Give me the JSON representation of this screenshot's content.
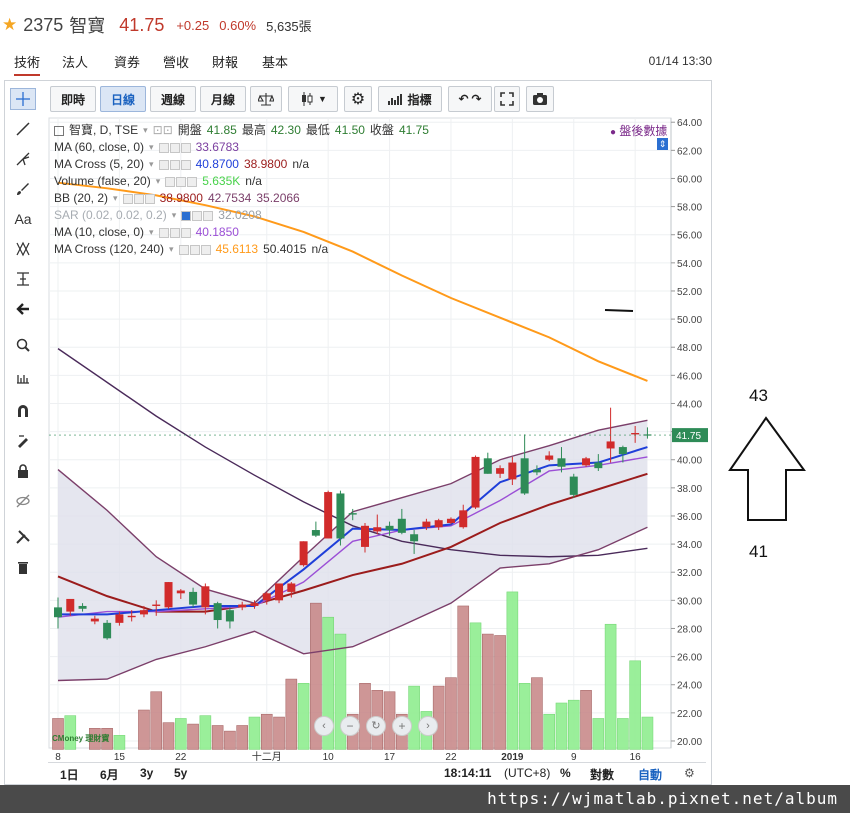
{
  "header": {
    "code": "2375",
    "name": "智寶",
    "price": "41.75",
    "change": "+0.25",
    "change_pct": "0.60%",
    "volume": "5,635張",
    "star_color": "#f5a623"
  },
  "tabs": [
    {
      "label": "技術",
      "active": true
    },
    {
      "label": "法人",
      "active": false
    },
    {
      "label": "資券",
      "active": false
    },
    {
      "label": "營收",
      "active": false
    },
    {
      "label": "財報",
      "active": false
    },
    {
      "label": "基本",
      "active": false
    }
  ],
  "timestamp": "01/14 13:30",
  "toolbar": {
    "buttons": [
      "即時",
      "日線",
      "週線",
      "月線"
    ],
    "active_button": "日線",
    "indicator_label": "指標"
  },
  "left_tools": [
    "crosshair-icon",
    "line-icon",
    "fork-icon",
    "brush-icon",
    "text-icon",
    "pattern-icon",
    "measure-icon",
    "arrow-left-icon",
    "zoom-icon",
    "ruler-icon",
    "magnet-icon",
    "draw-lock-icon",
    "lock-icon",
    "eye-off-icon",
    "tools-icon",
    "trash-icon"
  ],
  "legend": {
    "title_name": "智寶",
    "title_suffix": ", D, TSE",
    "ohlc": [
      {
        "label": "開盤",
        "value": "41.85"
      },
      {
        "label": "最高",
        "value": "42.30"
      },
      {
        "label": "最低",
        "value": "41.50"
      },
      {
        "label": "收盤",
        "value": "41.75"
      }
    ],
    "after_hours": "盤後數據",
    "rows": [
      {
        "label": "MA (60, close, 0)",
        "values": [
          "33.6783"
        ],
        "colors": [
          "#7b3fa0"
        ]
      },
      {
        "label": "MA Cross (5, 20)",
        "values": [
          "40.8700",
          "38.9800",
          "n/a"
        ],
        "colors": [
          "#1f3fd9",
          "#9b1c1c",
          "#333333"
        ]
      },
      {
        "label": "Volume (false, 20)",
        "values": [
          "5.635K",
          "n/a"
        ],
        "colors": [
          "#48d24a",
          "#333333"
        ]
      },
      {
        "label": "BB (20, 2)",
        "values": [
          "38.9800",
          "42.7534",
          "35.2066"
        ],
        "colors": [
          "#9b1c1c",
          "#7b3f6a",
          "#7b3f6a"
        ]
      },
      {
        "label": "SAR (0.02, 0.02, 0.2)",
        "values": [
          "32.0208"
        ],
        "colors": [
          "#9aa0a6"
        ],
        "dim": true
      },
      {
        "label": "MA (10, close, 0)",
        "values": [
          "40.1850"
        ],
        "colors": [
          "#9b4fd6"
        ]
      },
      {
        "label": "MA Cross (120, 240)",
        "values": [
          "45.6113",
          "50.4015",
          "n/a"
        ],
        "colors": [
          "#ff9a1a",
          "#333333",
          "#333333"
        ]
      }
    ]
  },
  "bottom_bar": {
    "ranges": [
      "1日",
      "6月",
      "3y",
      "5y"
    ],
    "clock": "18:14:11",
    "tz": "(UTC+8)",
    "pct": "%",
    "log": "對數",
    "auto": "自動"
  },
  "annotation": {
    "upper": "43",
    "lower": "41"
  },
  "watermark": "https://wjmatlab.pixnet.net/album",
  "logo_text": "CMoney 理財寶",
  "chart_data": {
    "type": "candlestick",
    "ylim": [
      19.5,
      64.3
    ],
    "ticks_y": [
      "64.00",
      "62.00",
      "60.00",
      "58.00",
      "56.00",
      "54.00",
      "52.00",
      "50.00",
      "48.00",
      "46.00",
      "44.00",
      "42.00",
      "40.00",
      "38.00",
      "36.00",
      "34.00",
      "32.00",
      "30.00",
      "28.00",
      "26.00",
      "24.00",
      "22.00",
      "20.00"
    ],
    "x_tick_labels": [
      {
        "label": "8",
        "i": 0
      },
      {
        "label": "15",
        "i": 5
      },
      {
        "label": "22",
        "i": 10
      },
      {
        "label": "十二月",
        "i": 17
      },
      {
        "label": "10",
        "i": 22
      },
      {
        "label": "17",
        "i": 27
      },
      {
        "label": "22",
        "i": 32
      },
      {
        "label": "2019",
        "i": 37
      },
      {
        "label": "9",
        "i": 42
      },
      {
        "label": "16",
        "i": 47
      }
    ],
    "price_tag": "41.75",
    "candles": [
      {
        "o": 29.5,
        "h": 30.2,
        "l": 28.0,
        "c": 28.8
      },
      {
        "o": 29.2,
        "h": 30.0,
        "l": 28.9,
        "c": 30.1
      },
      {
        "o": 29.6,
        "h": 29.8,
        "l": 29.2,
        "c": 29.4
      },
      {
        "o": 28.5,
        "h": 28.9,
        "l": 28.3,
        "c": 28.7
      },
      {
        "o": 28.4,
        "h": 28.6,
        "l": 27.2,
        "c": 27.3
      },
      {
        "o": 28.4,
        "h": 29.2,
        "l": 28.2,
        "c": 29.0
      },
      {
        "o": 28.8,
        "h": 29.3,
        "l": 28.5,
        "c": 28.9
      },
      {
        "o": 29.0,
        "h": 29.6,
        "l": 28.8,
        "c": 29.3
      },
      {
        "o": 29.6,
        "h": 30.0,
        "l": 28.9,
        "c": 29.7
      },
      {
        "o": 29.5,
        "h": 31.3,
        "l": 29.4,
        "c": 31.3
      },
      {
        "o": 30.5,
        "h": 30.8,
        "l": 30.1,
        "c": 30.7
      },
      {
        "o": 30.6,
        "h": 30.9,
        "l": 29.5,
        "c": 29.7
      },
      {
        "o": 29.5,
        "h": 31.2,
        "l": 29.0,
        "c": 31.0
      },
      {
        "o": 29.8,
        "h": 29.9,
        "l": 28.0,
        "c": 28.6
      },
      {
        "o": 29.3,
        "h": 29.5,
        "l": 28.0,
        "c": 28.5
      },
      {
        "o": 29.5,
        "h": 29.9,
        "l": 29.3,
        "c": 29.7
      },
      {
        "o": 29.6,
        "h": 30.0,
        "l": 29.4,
        "c": 29.8
      },
      {
        "o": 30.0,
        "h": 30.6,
        "l": 29.7,
        "c": 30.5
      },
      {
        "o": 30.0,
        "h": 31.2,
        "l": 29.8,
        "c": 31.2
      },
      {
        "o": 30.6,
        "h": 31.3,
        "l": 30.2,
        "c": 31.2
      },
      {
        "o": 32.5,
        "h": 34.2,
        "l": 32.4,
        "c": 34.2
      },
      {
        "o": 35.0,
        "h": 35.6,
        "l": 34.5,
        "c": 34.6
      },
      {
        "o": 34.4,
        "h": 37.8,
        "l": 34.4,
        "c": 37.7
      },
      {
        "o": 37.6,
        "h": 37.8,
        "l": 33.9,
        "c": 34.4
      },
      {
        "o": 36.2,
        "h": 36.5,
        "l": 35.7,
        "c": 36.1
      },
      {
        "o": 33.8,
        "h": 35.5,
        "l": 33.4,
        "c": 35.3
      },
      {
        "o": 34.9,
        "h": 36.1,
        "l": 34.7,
        "c": 35.2
      },
      {
        "o": 35.3,
        "h": 35.6,
        "l": 34.6,
        "c": 35.0
      },
      {
        "o": 35.8,
        "h": 36.5,
        "l": 34.7,
        "c": 34.8
      },
      {
        "o": 34.7,
        "h": 35.0,
        "l": 33.3,
        "c": 34.2
      },
      {
        "o": 35.2,
        "h": 35.8,
        "l": 35.0,
        "c": 35.6
      },
      {
        "o": 35.2,
        "h": 35.8,
        "l": 35.0,
        "c": 35.7
      },
      {
        "o": 35.5,
        "h": 35.9,
        "l": 35.4,
        "c": 35.8
      },
      {
        "o": 35.2,
        "h": 36.8,
        "l": 35.1,
        "c": 36.4
      },
      {
        "o": 36.6,
        "h": 40.3,
        "l": 36.5,
        "c": 40.2
      },
      {
        "o": 40.1,
        "h": 40.5,
        "l": 39.0,
        "c": 39.0
      },
      {
        "o": 39.0,
        "h": 39.6,
        "l": 38.7,
        "c": 39.4
      },
      {
        "o": 38.6,
        "h": 40.2,
        "l": 38.2,
        "c": 39.8
      },
      {
        "o": 40.1,
        "h": 41.8,
        "l": 37.5,
        "c": 37.6
      },
      {
        "o": 39.3,
        "h": 39.6,
        "l": 38.9,
        "c": 39.1
      },
      {
        "o": 40.0,
        "h": 40.6,
        "l": 39.9,
        "c": 40.3
      },
      {
        "o": 40.1,
        "h": 40.9,
        "l": 39.1,
        "c": 39.5
      },
      {
        "o": 38.8,
        "h": 39.0,
        "l": 37.3,
        "c": 37.5
      },
      {
        "o": 39.6,
        "h": 40.2,
        "l": 39.5,
        "c": 40.1
      },
      {
        "o": 39.8,
        "h": 40.4,
        "l": 39.2,
        "c": 39.4
      },
      {
        "o": 40.8,
        "h": 43.7,
        "l": 39.8,
        "c": 41.3
      },
      {
        "o": 40.9,
        "h": 41.0,
        "l": 39.8,
        "c": 40.4
      },
      {
        "o": 41.8,
        "h": 42.4,
        "l": 41.2,
        "c": 41.9
      },
      {
        "o": 41.8,
        "h": 42.3,
        "l": 41.5,
        "c": 41.75
      }
    ],
    "volume": {
      "ylim_top": 30.7,
      "base": 19.4,
      "bars": [
        {
          "i": 0,
          "top": 21.6,
          "up": false
        },
        {
          "i": 1,
          "top": 21.8,
          "up": true
        },
        {
          "i": 3,
          "top": 20.9,
          "up": false
        },
        {
          "i": 4,
          "top": 20.9,
          "up": false
        },
        {
          "i": 5,
          "top": 20.4,
          "up": true
        },
        {
          "i": 7,
          "top": 22.2,
          "up": false
        },
        {
          "i": 8,
          "top": 23.5,
          "up": false
        },
        {
          "i": 9,
          "top": 21.3,
          "up": false
        },
        {
          "i": 10,
          "top": 21.6,
          "up": true
        },
        {
          "i": 11,
          "top": 21.2,
          "up": false
        },
        {
          "i": 12,
          "top": 21.8,
          "up": true
        },
        {
          "i": 13,
          "top": 21.1,
          "up": false
        },
        {
          "i": 14,
          "top": 20.7,
          "up": false
        },
        {
          "i": 15,
          "top": 21.1,
          "up": false
        },
        {
          "i": 16,
          "top": 21.7,
          "up": true
        },
        {
          "i": 17,
          "top": 21.9,
          "up": false
        },
        {
          "i": 18,
          "top": 21.7,
          "up": false
        },
        {
          "i": 19,
          "top": 24.4,
          "up": false
        },
        {
          "i": 20,
          "top": 24.1,
          "up": true
        },
        {
          "i": 21,
          "top": 29.8,
          "up": false
        },
        {
          "i": 22,
          "top": 28.8,
          "up": true
        },
        {
          "i": 23,
          "top": 27.6,
          "up": true
        },
        {
          "i": 24,
          "top": 21.9,
          "up": false
        },
        {
          "i": 25,
          "top": 24.1,
          "up": false
        },
        {
          "i": 26,
          "top": 23.6,
          "up": false
        },
        {
          "i": 27,
          "top": 23.5,
          "up": false
        },
        {
          "i": 28,
          "top": 21.9,
          "up": false
        },
        {
          "i": 29,
          "top": 23.9,
          "up": true
        },
        {
          "i": 30,
          "top": 22.1,
          "up": true
        },
        {
          "i": 31,
          "top": 23.9,
          "up": false
        },
        {
          "i": 32,
          "top": 24.5,
          "up": false
        },
        {
          "i": 33,
          "top": 29.6,
          "up": false
        },
        {
          "i": 34,
          "top": 28.4,
          "up": true
        },
        {
          "i": 35,
          "top": 27.6,
          "up": false
        },
        {
          "i": 36,
          "top": 27.5,
          "up": false
        },
        {
          "i": 37,
          "top": 30.6,
          "up": true
        },
        {
          "i": 38,
          "top": 24.1,
          "up": true
        },
        {
          "i": 39,
          "top": 24.5,
          "up": false
        },
        {
          "i": 40,
          "top": 21.9,
          "up": true
        },
        {
          "i": 41,
          "top": 22.7,
          "up": true
        },
        {
          "i": 42,
          "top": 22.9,
          "up": true
        },
        {
          "i": 43,
          "top": 23.6,
          "up": false
        },
        {
          "i": 44,
          "top": 21.6,
          "up": true
        },
        {
          "i": 45,
          "top": 28.3,
          "up": true
        },
        {
          "i": 46,
          "top": 21.6,
          "up": true
        },
        {
          "i": 47,
          "top": 25.7,
          "up": true
        },
        {
          "i": 48,
          "top": 21.7,
          "up": true
        }
      ]
    },
    "series": [
      {
        "name": "MA (120)",
        "color": "#ff9a1a",
        "x": [
          0,
          4,
          8,
          12,
          16,
          20,
          24,
          28,
          32,
          36,
          40,
          44,
          48
        ],
        "y": [
          59.7,
          59.3,
          58.8,
          58.1,
          57.3,
          56.2,
          54.8,
          53.1,
          51.5,
          50.1,
          48.7,
          47.0,
          45.6
        ]
      },
      {
        "name": "MA (60)",
        "color": "#4a2a5a",
        "x": [
          0,
          4,
          8,
          12,
          16,
          20,
          24,
          28,
          32,
          36,
          40,
          44,
          48
        ],
        "y": [
          47.9,
          45.5,
          43.1,
          40.9,
          38.9,
          37.0,
          35.3,
          34.2,
          33.6,
          33.2,
          33.1,
          33.2,
          33.7
        ]
      },
      {
        "name": "BB upper",
        "color": "#7b3f6a",
        "x": [
          0,
          4,
          8,
          12,
          16,
          20,
          24,
          28,
          32,
          36,
          40,
          44,
          48
        ],
        "y": [
          39.3,
          36.4,
          33.1,
          30.8,
          29.8,
          33.1,
          36.3,
          37.3,
          38.3,
          40.0,
          41.0,
          42.1,
          42.8
        ]
      },
      {
        "name": "BB lower",
        "color": "#7b3f6a",
        "x": [
          0,
          4,
          8,
          12,
          16,
          20,
          24,
          28,
          32,
          36,
          40,
          44,
          48
        ],
        "y": [
          24.3,
          24.4,
          25.8,
          26.7,
          27.8,
          26.2,
          26.7,
          28.2,
          29.8,
          32.3,
          32.6,
          33.6,
          35.2
        ]
      },
      {
        "name": "MA (20)",
        "color": "#9b1c1c",
        "x": [
          0,
          4,
          8,
          12,
          16,
          20,
          24,
          28,
          32,
          36,
          40,
          44,
          48
        ],
        "y": [
          31.7,
          30.3,
          29.2,
          29.2,
          29.7,
          30.7,
          31.8,
          32.6,
          33.8,
          35.5,
          36.8,
          37.9,
          39.0
        ]
      },
      {
        "name": "MA (10)",
        "color": "#9b4fd6",
        "x": [
          0,
          4,
          8,
          12,
          16,
          20,
          24,
          28,
          32,
          36,
          40,
          44,
          48
        ],
        "y": [
          28.8,
          29.2,
          29.2,
          29.4,
          29.6,
          31.3,
          34.2,
          35.0,
          35.3,
          37.1,
          39.2,
          39.6,
          40.2
        ]
      },
      {
        "name": "MA (5)",
        "color": "#1f3fd9",
        "x": [
          0,
          4,
          8,
          12,
          16,
          20,
          24,
          28,
          32,
          36,
          40,
          44,
          48
        ],
        "y": [
          29.0,
          29.0,
          29.3,
          29.6,
          29.6,
          32.2,
          35.1,
          35.0,
          35.4,
          38.4,
          39.6,
          39.8,
          40.9
        ]
      }
    ]
  }
}
